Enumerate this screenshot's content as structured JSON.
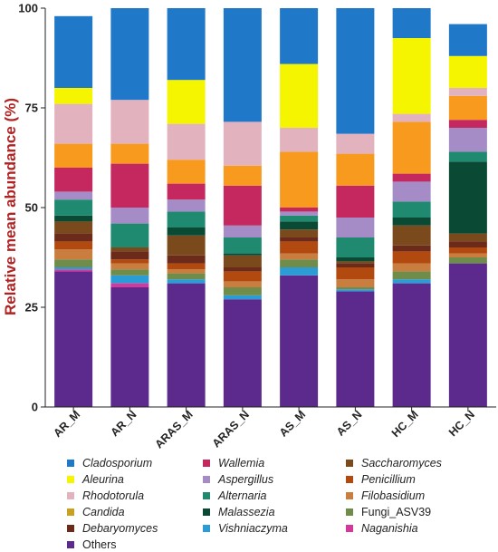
{
  "chart_data": {
    "type": "bar",
    "stacked": true,
    "ylabel": "Relative mean abundance (%)",
    "ylim": [
      0,
      100
    ],
    "yticks": [
      "0",
      "25",
      "50",
      "75",
      "100"
    ],
    "categories": [
      "AR_M",
      "AR_N",
      "ARAS_M",
      "ARAS_N",
      "AS_M",
      "AS_N",
      "HC_M",
      "HC_N"
    ],
    "series": [
      {
        "name": "Others",
        "color": "#5b2a8c",
        "values": [
          34,
          30,
          31,
          27,
          33,
          29,
          31,
          36
        ]
      },
      {
        "name": "Naganishia",
        "color": "#d4389a",
        "values": [
          0.5,
          1,
          0,
          0,
          0,
          0,
          0,
          0
        ]
      },
      {
        "name": "Vishniaczyma",
        "color": "#2b9cd6",
        "values": [
          0.5,
          2,
          1,
          1,
          2,
          0.5,
          1,
          0
        ]
      },
      {
        "name": "Fungi_ASV39",
        "color": "#6f8c4a",
        "values": [
          2,
          1.5,
          1.5,
          2,
          2,
          0.5,
          2,
          1.5
        ]
      },
      {
        "name": "Filobasidium",
        "color": "#c97d3f",
        "values": [
          2.5,
          1.5,
          1,
          1.5,
          1.5,
          2,
          2,
          1
        ]
      },
      {
        "name": "Penicillium",
        "color": "#b24a0f",
        "values": [
          2,
          1,
          1.5,
          2.5,
          3,
          3,
          3,
          1.5
        ]
      },
      {
        "name": "Debaryomyces",
        "color": "#6b2a1a",
        "values": [
          2,
          2,
          2,
          1,
          1,
          1,
          1.5,
          1.5
        ]
      },
      {
        "name": "Saccharomyces",
        "color": "#7a4a1c",
        "values": [
          3,
          1,
          5,
          3,
          2,
          0.5,
          5,
          2
        ]
      },
      {
        "name": "Malassezia",
        "color": "#0a4a35",
        "values": [
          1.5,
          0,
          2,
          0.5,
          2,
          1,
          2,
          18
        ]
      },
      {
        "name": "Alternaria",
        "color": "#1f8a70",
        "values": [
          4,
          6,
          4,
          4,
          1.5,
          5,
          4,
          2.5
        ]
      },
      {
        "name": "Aspergillus",
        "color": "#a58cc6",
        "values": [
          2,
          4,
          3,
          3,
          1,
          5,
          5,
          6
        ]
      },
      {
        "name": "Wallemia",
        "color": "#c4285e",
        "values": [
          6,
          11,
          4,
          10,
          1,
          8,
          2,
          2
        ]
      },
      {
        "name": "Candida",
        "color": "#c8a21f",
        "values": [
          0,
          0,
          0,
          0,
          0,
          0,
          0,
          0
        ]
      },
      {
        "name": "Rhodotorula",
        "color": "#e2b3be",
        "values": [
          10,
          11,
          9,
          11,
          6,
          5,
          2,
          2
        ]
      },
      {
        "name": "Aleurina",
        "color": "#f5f500",
        "values": [
          4,
          0,
          11,
          0,
          16,
          0,
          19,
          8
        ]
      },
      {
        "name": "Cladosporium",
        "color": "#1f78c8",
        "values": [
          18,
          24,
          18,
          29,
          17,
          32,
          8,
          8
        ]
      }
    ],
    "orange_series": {
      "name": "",
      "color": "#f79a1e",
      "values": [
        6,
        5,
        6,
        5,
        14,
        8,
        13,
        6
      ]
    },
    "legend": [
      {
        "name": "Cladosporium",
        "color": "#1f78c8",
        "italic": true
      },
      {
        "name": "Wallemia",
        "color": "#c4285e",
        "italic": true
      },
      {
        "name": "Saccharomyces",
        "color": "#7a4a1c",
        "italic": true
      },
      {
        "name": "Aleurina",
        "color": "#f5f500",
        "italic": true
      },
      {
        "name": "Aspergillus",
        "color": "#a58cc6",
        "italic": true
      },
      {
        "name": "Penicillium",
        "color": "#b24a0f",
        "italic": true
      },
      {
        "name": "Rhodotorula",
        "color": "#e2b3be",
        "italic": true
      },
      {
        "name": "Alternaria",
        "color": "#1f8a70",
        "italic": true
      },
      {
        "name": "Filobasidium",
        "color": "#c97d3f",
        "italic": true
      },
      {
        "name": "Candida",
        "color": "#c8a21f",
        "italic": true
      },
      {
        "name": "Malassezia",
        "color": "#0a4a35",
        "italic": true
      },
      {
        "name": "Fungi_ASV39",
        "color": "#6f8c4a",
        "italic": false
      },
      {
        "name": "Debaryomyces",
        "color": "#6b2a1a",
        "italic": true
      },
      {
        "name": "Vishniaczyma",
        "color": "#2b9cd6",
        "italic": true
      },
      {
        "name": "Naganishia",
        "color": "#d4389a",
        "italic": true
      },
      {
        "name": "Others",
        "color": "#5b2a8c",
        "italic": false
      }
    ]
  }
}
